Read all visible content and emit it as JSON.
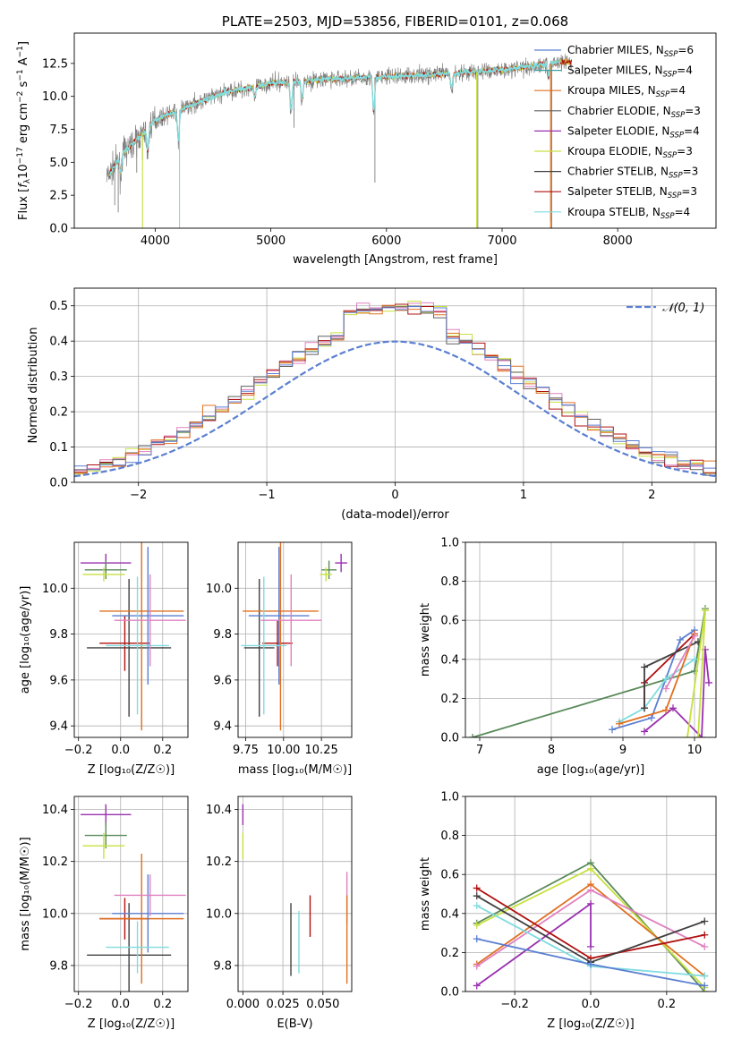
{
  "colors": {
    "chabrier_miles": "#5b7fd1",
    "salpeter_miles": "#3aa0a0",
    "kroupa_miles": "#e07020",
    "chabrier_elodie": "#606060",
    "salpeter_elodie": "#9a30b0",
    "kroupa_elodie": "#c8e040",
    "chabrier_stelib": "#404040",
    "salpeter_stelib": "#b01010",
    "kroupa_stelib": "#80dce0",
    "observed": "#808080",
    "pink": "#e080c0",
    "green": "#5a8a5a"
  },
  "chart_data": [
    {
      "id": "spectrum",
      "type": "line",
      "title": "PLATE=2503, MJD=53856, FIBERID=0101, z=0.068",
      "xlabel": "wavelength [Angstrom, rest frame]",
      "ylabel": "Flux [f_λ10^{-17} erg cm^{-2} s^{-1} A^{-1}]",
      "xlim": [
        3300,
        8850
      ],
      "ylim": [
        0,
        14.8
      ],
      "xticks": [
        "4000",
        "5000",
        "6000",
        "7000",
        "8000"
      ],
      "yticks": [
        "0.0",
        "2.5",
        "5.0",
        "7.5",
        "10.0",
        "12.5"
      ],
      "grid": false,
      "legend": [
        {
          "label": "Chabrier MILES, N",
          "sub": "SSP",
          "value": "=6",
          "color_key": "chabrier_miles"
        },
        {
          "label": "Salpeter MILES, N",
          "sub": "SSP",
          "value": "=4",
          "color_key": "salpeter_miles"
        },
        {
          "label": "Kroupa MILES, N",
          "sub": "SSP",
          "value": "=4",
          "color_key": "kroupa_miles"
        },
        {
          "label": "Chabrier ELODIE, N",
          "sub": "SSP",
          "value": "=3",
          "color_key": "chabrier_elodie"
        },
        {
          "label": "Salpeter ELODIE, N",
          "sub": "SSP",
          "value": "=4",
          "color_key": "salpeter_elodie"
        },
        {
          "label": "Kroupa ELODIE, N",
          "sub": "SSP",
          "value": "=3",
          "color_key": "kroupa_elodie"
        },
        {
          "label": "Chabrier STELIB, N",
          "sub": "SSP",
          "value": "=3",
          "color_key": "chabrier_stelib"
        },
        {
          "label": "Salpeter STELIB, N",
          "sub": "SSP",
          "value": "=3",
          "color_key": "salpeter_stelib"
        },
        {
          "label": "Kroupa STELIB, N",
          "sub": "SSP",
          "value": "=4",
          "color_key": "kroupa_stelib"
        }
      ],
      "continuum_anchors": [
        [
          3600,
          4.0
        ],
        [
          3700,
          5.5
        ],
        [
          3850,
          6.8
        ],
        [
          4000,
          8.2
        ],
        [
          4300,
          9.3
        ],
        [
          4600,
          10.3
        ],
        [
          5000,
          11.0
        ],
        [
          5500,
          11.3
        ],
        [
          6000,
          11.5
        ],
        [
          6500,
          11.7
        ],
        [
          7000,
          12.0
        ],
        [
          7500,
          12.6
        ],
        [
          7600,
          12.6
        ]
      ],
      "absorption_lines": [
        [
          3700,
          1.5
        ],
        [
          3935,
          2.0
        ],
        [
          4200,
          2.5
        ],
        [
          4860,
          1.0
        ],
        [
          5175,
          2.5
        ],
        [
          5270,
          1.5
        ],
        [
          5890,
          3.0
        ],
        [
          6563,
          1.5
        ],
        [
          7400,
          1.0
        ]
      ],
      "spikes": [
        [
          3840,
          2.5
        ],
        [
          3890,
          2.0
        ],
        [
          4210,
          11.0
        ],
        [
          5200,
          3.5
        ],
        [
          5900,
          8.0
        ],
        [
          6790,
          12.0
        ],
        [
          7420,
          12.0
        ],
        [
          7430,
          13.2
        ],
        [
          3650,
          3.0
        ],
        [
          3680,
          4.0
        ]
      ]
    },
    {
      "id": "residuals",
      "type": "line",
      "xlabel": "(data-model)/error",
      "ylabel": "Normed distribution",
      "xlim": [
        -2.5,
        2.5
      ],
      "ylim": [
        0,
        0.55
      ],
      "xticks": [
        "−2",
        "−1",
        "0",
        "1",
        "2"
      ],
      "yticks": [
        "0.0",
        "0.1",
        "0.2",
        "0.3",
        "0.4",
        "0.5"
      ],
      "grid": true,
      "legend": [
        {
          "label": "𝒩(0, 1)",
          "color_key": "chabrier_miles",
          "style": "dashed"
        }
      ],
      "bin_width": 0.1,
      "series_color_keys": [
        "pink",
        "kroupa_elodie",
        "salpeter_stelib",
        "chabrier_elodie",
        "kroupa_miles",
        "chabrier_miles"
      ]
    },
    {
      "id": "age_vs_z",
      "type": "scatter",
      "xlabel": "Z [log₁₀(Z/Z☉)]",
      "ylabel": "age  [log₁₀(age/yr)]",
      "xlim": [
        -0.22,
        0.32
      ],
      "ylim": [
        9.35,
        10.2
      ],
      "xticks": [
        "−0.2",
        "0.0",
        "0.2"
      ],
      "yticks": [
        "9.4",
        "9.6",
        "9.8",
        "10.0"
      ],
      "grid": true,
      "points": [
        {
          "x": -0.07,
          "y": 10.11,
          "xerr": 0.12,
          "yerr": 0.04,
          "color_key": "salpeter_elodie"
        },
        {
          "x": -0.07,
          "y": 10.08,
          "xerr": 0.1,
          "yerr": 0.04,
          "color_key": "green"
        },
        {
          "x": -0.08,
          "y": 10.06,
          "xerr": 0.1,
          "yerr": 0.03,
          "color_key": "kroupa_elodie"
        },
        {
          "x": 0.04,
          "y": 9.74,
          "xerr": 0.2,
          "yerr": 0.3,
          "color_key": "chabrier_stelib"
        },
        {
          "x": 0.02,
          "y": 9.76,
          "xerr": 0.12,
          "yerr": 0.12,
          "color_key": "salpeter_stelib"
        },
        {
          "x": 0.1,
          "y": 9.9,
          "xerr": 0.2,
          "yerr": 0.52,
          "color_key": "kroupa_miles"
        },
        {
          "x": 0.13,
          "y": 9.88,
          "xerr": 0.17,
          "yerr": 0.3,
          "color_key": "chabrier_miles"
        },
        {
          "x": 0.08,
          "y": 9.75,
          "xerr": 0.15,
          "yerr": 0.3,
          "color_key": "kroupa_stelib"
        },
        {
          "x": 0.14,
          "y": 9.86,
          "xerr": 0.17,
          "yerr": 0.2,
          "color_key": "pink"
        }
      ]
    },
    {
      "id": "age_vs_mass",
      "type": "scatter",
      "xlabel": "mass [log₁₀(M/M☉)]",
      "yticks": [
        "9.4",
        "9.6",
        "9.8",
        "10.0"
      ],
      "xticks": [
        "9.75",
        "10.00",
        "10.25"
      ],
      "xlim": [
        9.7,
        10.45
      ],
      "ylim": [
        9.35,
        10.2
      ],
      "grid": true,
      "points": [
        {
          "x": 10.38,
          "y": 10.11,
          "xerr": 0.04,
          "yerr": 0.04,
          "color_key": "salpeter_elodie"
        },
        {
          "x": 10.3,
          "y": 10.08,
          "xerr": 0.05,
          "yerr": 0.04,
          "color_key": "green"
        },
        {
          "x": 10.28,
          "y": 10.06,
          "xerr": 0.04,
          "yerr": 0.03,
          "color_key": "kroupa_elodie"
        },
        {
          "x": 9.84,
          "y": 9.74,
          "xerr": 0.1,
          "yerr": 0.3,
          "color_key": "chabrier_stelib"
        },
        {
          "x": 9.96,
          "y": 9.76,
          "xerr": 0.1,
          "yerr": 0.1,
          "color_key": "salpeter_stelib"
        },
        {
          "x": 9.98,
          "y": 9.9,
          "xerr": 0.25,
          "yerr": 0.52,
          "color_key": "kroupa_miles"
        },
        {
          "x": 9.97,
          "y": 9.88,
          "xerr": 0.2,
          "yerr": 0.3,
          "color_key": "chabrier_miles"
        },
        {
          "x": 9.87,
          "y": 9.75,
          "xerr": 0.15,
          "yerr": 0.3,
          "color_key": "kroupa_stelib"
        },
        {
          "x": 10.05,
          "y": 9.86,
          "xerr": 0.2,
          "yerr": 0.2,
          "color_key": "pink"
        }
      ]
    },
    {
      "id": "weight_vs_age",
      "type": "line",
      "xlabel": "age  [log₁₀(age/yr)]",
      "ylabel": "mass weight",
      "xlim": [
        6.8,
        10.3
      ],
      "ylim": [
        0,
        1
      ],
      "xticks": [
        "7",
        "8",
        "9",
        "10"
      ],
      "yticks": [
        "0.0",
        "0.2",
        "0.4",
        "0.6",
        "0.8",
        "1.0"
      ],
      "grid": true,
      "series": [
        {
          "color_key": "green",
          "x": [
            6.9,
            10.0,
            10.15
          ],
          "y": [
            0.0,
            0.34,
            0.66
          ]
        },
        {
          "color_key": "chabrier_miles",
          "x": [
            8.85,
            9.4,
            9.6,
            9.8,
            10.0
          ],
          "y": [
            0.04,
            0.1,
            0.3,
            0.5,
            0.55
          ]
        },
        {
          "color_key": "kroupa_stelib",
          "x": [
            8.95,
            9.3,
            9.6,
            10.0
          ],
          "y": [
            0.08,
            0.15,
            0.3,
            0.4
          ]
        },
        {
          "color_key": "salpeter_stelib",
          "x": [
            9.3,
            9.3,
            10.0
          ],
          "y": [
            0.15,
            0.28,
            0.53
          ]
        },
        {
          "color_key": "chabrier_stelib",
          "x": [
            9.3,
            9.3,
            10.05
          ],
          "y": [
            0.15,
            0.36,
            0.49
          ]
        },
        {
          "color_key": "salpeter_elodie",
          "x": [
            9.3,
            9.7,
            10.1,
            10.15,
            10.2
          ],
          "y": [
            0.03,
            0.15,
            0.0,
            0.45,
            0.28
          ]
        },
        {
          "color_key": "kroupa_elodie",
          "x": [
            9.9,
            10.15,
            10.05
          ],
          "y": [
            0.0,
            0.65,
            0.0
          ]
        },
        {
          "color_key": "kroupa_miles",
          "x": [
            8.95,
            9.6,
            10.0
          ],
          "y": [
            0.07,
            0.14,
            0.53
          ]
        },
        {
          "color_key": "pink",
          "x": [
            9.6,
            10.0
          ],
          "y": [
            0.25,
            0.52
          ]
        }
      ]
    },
    {
      "id": "mass_vs_z",
      "type": "scatter",
      "xlabel": "Z [log₁₀(Z/Z☉)]",
      "ylabel": "mass [log₁₀(M/M☉)]",
      "xlim": [
        -0.22,
        0.32
      ],
      "ylim": [
        9.7,
        10.45
      ],
      "xticks": [
        "−0.2",
        "0.0",
        "0.2"
      ],
      "yticks": [
        "9.8",
        "10.0",
        "10.2",
        "10.4"
      ],
      "grid": true,
      "points": [
        {
          "x": -0.07,
          "y": 10.38,
          "xerr": 0.12,
          "yerr": 0.04,
          "color_key": "salpeter_elodie"
        },
        {
          "x": -0.07,
          "y": 10.3,
          "xerr": 0.1,
          "yerr": 0.05,
          "color_key": "green"
        },
        {
          "x": -0.08,
          "y": 10.26,
          "xerr": 0.1,
          "yerr": 0.05,
          "color_key": "kroupa_elodie"
        },
        {
          "x": 0.04,
          "y": 9.84,
          "xerr": 0.2,
          "yerr": 0.2,
          "color_key": "chabrier_stelib"
        },
        {
          "x": 0.02,
          "y": 9.98,
          "xerr": 0.12,
          "yerr": 0.08,
          "color_key": "salpeter_stelib"
        },
        {
          "x": 0.1,
          "y": 9.98,
          "xerr": 0.2,
          "yerr": 0.25,
          "color_key": "kroupa_miles"
        },
        {
          "x": 0.13,
          "y": 10.0,
          "xerr": 0.17,
          "yerr": 0.15,
          "color_key": "chabrier_miles"
        },
        {
          "x": 0.08,
          "y": 9.87,
          "xerr": 0.15,
          "yerr": 0.1,
          "color_key": "kroupa_stelib"
        },
        {
          "x": 0.14,
          "y": 10.07,
          "xerr": 0.17,
          "yerr": 0.08,
          "color_key": "pink"
        }
      ]
    },
    {
      "id": "mass_vs_ebv",
      "type": "scatter",
      "xlabel": "E(B-V)",
      "xlim": [
        -0.003,
        0.068
      ],
      "ylim": [
        9.7,
        10.45
      ],
      "xticks": [
        "0.000",
        "0.025",
        "0.050"
      ],
      "yticks": [
        "9.8",
        "10.0",
        "10.2",
        "10.4"
      ],
      "grid": true,
      "points": [
        {
          "x": 0.0,
          "y": 10.38,
          "xerr": 0,
          "yerr": 0.04,
          "color_key": "salpeter_elodie"
        },
        {
          "x": 0.0,
          "y": 10.26,
          "xerr": 0,
          "yerr": 0.05,
          "color_key": "kroupa_elodie"
        },
        {
          "x": 0.03,
          "y": 9.9,
          "xerr": 0,
          "yerr": 0.14,
          "color_key": "chabrier_stelib"
        },
        {
          "x": 0.035,
          "y": 9.89,
          "xerr": 0,
          "yerr": 0.12,
          "color_key": "kroupa_stelib"
        },
        {
          "x": 0.042,
          "y": 9.99,
          "xerr": 0,
          "yerr": 0.08,
          "color_key": "salpeter_stelib"
        },
        {
          "x": 0.065,
          "y": 10.06,
          "xerr": 0,
          "yerr": 0.1,
          "color_key": "pink"
        },
        {
          "x": 0.065,
          "y": 9.9,
          "xerr": 0,
          "yerr": 0.17,
          "color_key": "kroupa_miles"
        }
      ]
    },
    {
      "id": "weight_vs_z",
      "type": "line",
      "xlabel": "Z [log₁₀(Z/Z☉)]",
      "ylabel": "mass weight",
      "xlim": [
        -0.33,
        0.33
      ],
      "ylim": [
        0,
        1
      ],
      "xticks": [
        "−0.2",
        "0.0",
        "0.2"
      ],
      "yticks": [
        "0.0",
        "0.2",
        "0.4",
        "0.6",
        "0.8",
        "1.0"
      ],
      "grid": true,
      "series": [
        {
          "color_key": "green",
          "x": [
            -0.3,
            0.0,
            0.3
          ],
          "y": [
            0.35,
            0.66,
            0.0
          ]
        },
        {
          "color_key": "kroupa_elodie",
          "x": [
            -0.3,
            0.0,
            0.3
          ],
          "y": [
            0.34,
            0.63,
            0.02
          ]
        },
        {
          "color_key": "kroupa_miles",
          "x": [
            -0.3,
            0.0,
            0.3
          ],
          "y": [
            0.14,
            0.55,
            0.08
          ]
        },
        {
          "color_key": "pink",
          "x": [
            -0.3,
            0.0,
            0.3
          ],
          "y": [
            0.13,
            0.52,
            0.23
          ]
        },
        {
          "color_key": "salpeter_elodie",
          "x": [
            -0.3,
            0.0,
            0.0
          ],
          "y": [
            0.03,
            0.45,
            0.23
          ]
        },
        {
          "color_key": "salpeter_stelib",
          "x": [
            -0.3,
            0.0,
            0.3
          ],
          "y": [
            0.53,
            0.17,
            0.29
          ]
        },
        {
          "color_key": "chabrier_stelib",
          "x": [
            -0.3,
            0.0,
            0.3
          ],
          "y": [
            0.49,
            0.15,
            0.36
          ]
        },
        {
          "color_key": "kroupa_stelib",
          "x": [
            -0.3,
            0.0,
            0.3
          ],
          "y": [
            0.44,
            0.13,
            0.08
          ]
        },
        {
          "color_key": "chabrier_miles",
          "x": [
            -0.3,
            0.0,
            0.3
          ],
          "y": [
            0.27,
            0.14,
            0.03
          ]
        }
      ]
    }
  ]
}
